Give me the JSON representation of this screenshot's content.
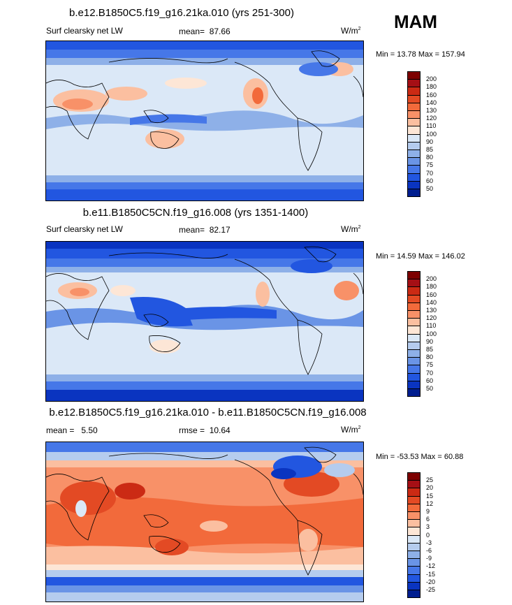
{
  "season": "MAM",
  "panels": [
    {
      "title": "b.e12.B1850C5.f19_g16.21ka.010 (yrs 251-300)",
      "variable": "Surf clearsky net LW",
      "mean_label": "mean=",
      "mean_value": "87.66",
      "units": "W/m",
      "units_exp": "2",
      "minmax": "Min =  13.78 Max = 157.94"
    },
    {
      "title": "b.e11.B1850C5CN.f19_g16.008 (yrs 1351-1400)",
      "variable": "Surf clearsky net LW",
      "mean_label": "mean=",
      "mean_value": "82.17",
      "units": "W/m",
      "units_exp": "2",
      "minmax": "Min =  14.59 Max = 146.02"
    },
    {
      "title": "b.e12.B1850C5.f19_g16.21ka.010 - b.e11.B1850C5CN.f19_g16.008",
      "mean_label": "mean =",
      "mean_value": "5.50",
      "rmse_label": "rmse =",
      "rmse_value": "10.64",
      "units": "W/m",
      "units_exp": "2",
      "minmax": "Min = -53.53 Max =  60.88"
    }
  ],
  "colorbar_abs": {
    "labels": [
      "200",
      "180",
      "160",
      "140",
      "130",
      "120",
      "110",
      "100",
      "90",
      "85",
      "80",
      "75",
      "70",
      "60",
      "50"
    ],
    "colors": [
      "#7d0000",
      "#a50f15",
      "#cb2a14",
      "#e34a24",
      "#f26a3b",
      "#f89168",
      "#fbbfa0",
      "#fde6d6",
      "#dbe8f7",
      "#b5ccee",
      "#8eb0e8",
      "#6a94e6",
      "#4677e8",
      "#2256e0",
      "#0a34c0",
      "#001e8f"
    ]
  },
  "colorbar_diff": {
    "labels": [
      "25",
      "20",
      "15",
      "12",
      "9",
      "6",
      "3",
      "0",
      "-3",
      "-6",
      "-9",
      "-12",
      "-15",
      "-20",
      "-25"
    ],
    "colors": [
      "#7d0000",
      "#a50f15",
      "#cb2a14",
      "#e34a24",
      "#f26a3b",
      "#f89168",
      "#fbbfa0",
      "#fde6d6",
      "#dbe8f7",
      "#b5ccee",
      "#8eb0e8",
      "#6a94e6",
      "#4677e8",
      "#2256e0",
      "#0a34c0",
      "#001e8f"
    ]
  }
}
